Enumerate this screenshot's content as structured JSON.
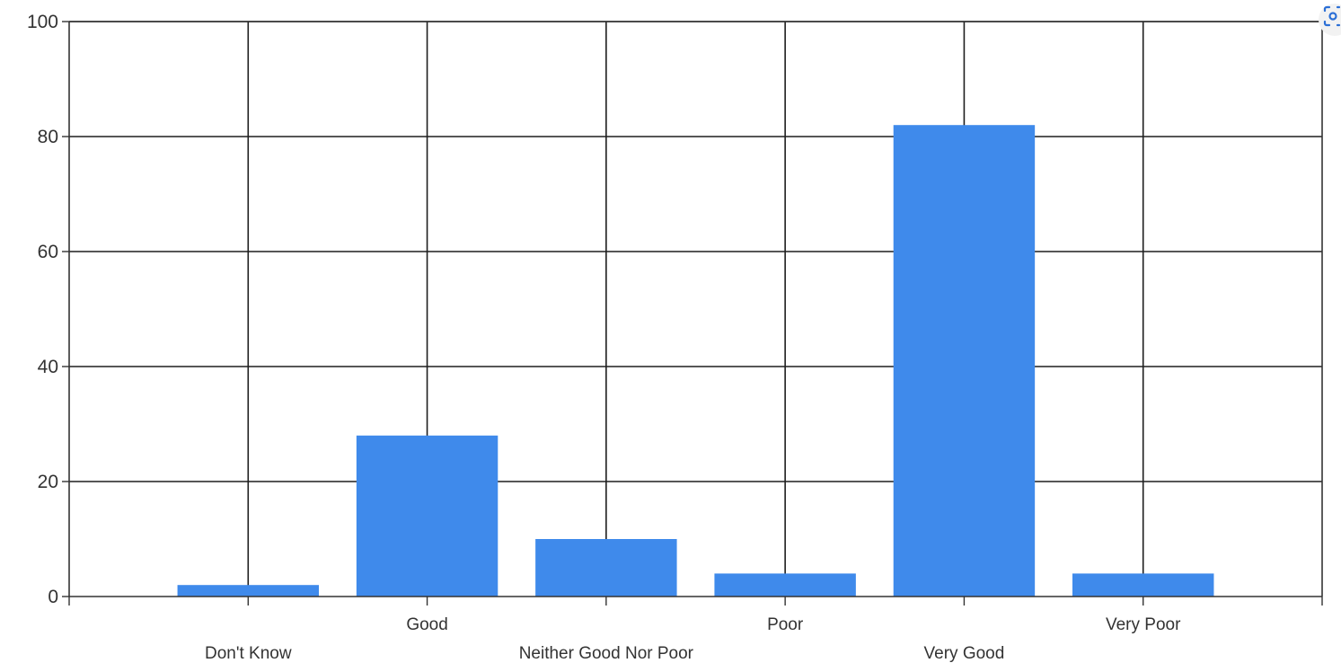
{
  "chart_data": {
    "type": "bar",
    "categories": [
      "Don't Know",
      "Good",
      "Neither Good Nor Poor",
      "Poor",
      "Very Good",
      "Very Poor"
    ],
    "values": [
      2,
      28,
      10,
      4,
      82,
      4
    ],
    "yticks": [
      "0",
      "20",
      "40",
      "60",
      "80",
      "100"
    ],
    "ylim": [
      0,
      100
    ],
    "title": "",
    "xlabel": "",
    "ylabel": "",
    "grid": true,
    "bar_color": "#3f8aeb",
    "grid_color": "#1e1e1e"
  },
  "overlay": {
    "icon": "visual-search-icon"
  }
}
